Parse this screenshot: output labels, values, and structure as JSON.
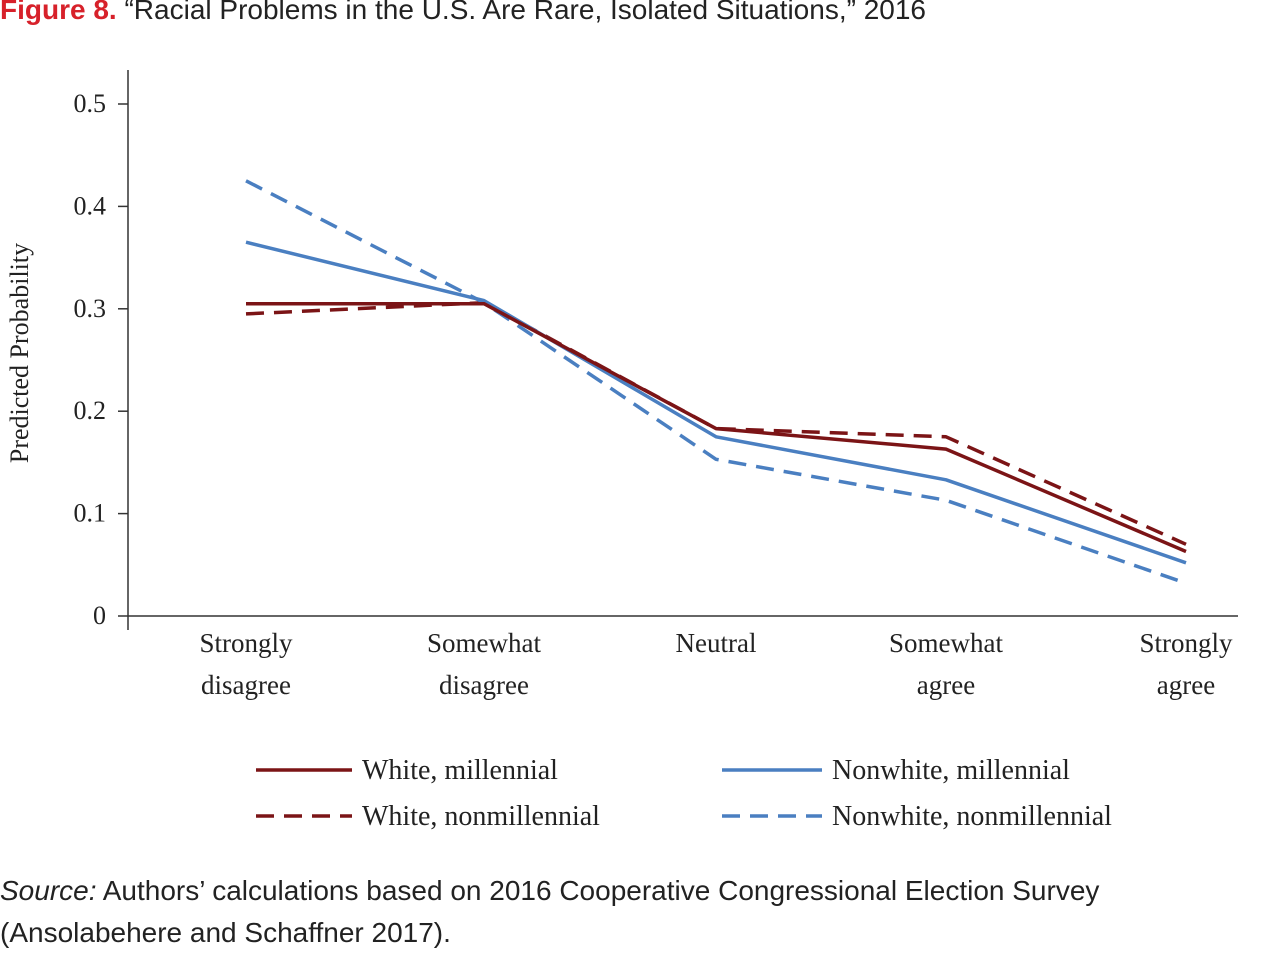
{
  "figure": {
    "label": "Figure 8.",
    "title": "“Racial Problems in the U.S. Are Rare, Isolated Situations,” 2016"
  },
  "source": {
    "label": "Source:",
    "line1": "Authors’ calculations based on 2016 Cooperative Congressional Election Survey",
    "line2": "(Ansolabehere and Schaffner 2017)."
  },
  "colors": {
    "white": "#7b1416",
    "nonwhite": "#4a7fc1",
    "accent": "#d7212a"
  },
  "chart_data": {
    "type": "line",
    "ylabel": "Predicted Probability",
    "xlabel": "",
    "ylim": [
      0,
      0.5
    ],
    "yticks": [
      0,
      0.1,
      0.2,
      0.3,
      0.4,
      0.5
    ],
    "ytick_labels": [
      "0",
      "0.1",
      "0.2",
      "0.3",
      "0.4",
      "0.5"
    ],
    "categories": [
      [
        "Strongly",
        "disagree"
      ],
      [
        "Somewhat",
        "disagree"
      ],
      [
        "Neutral"
      ],
      [
        "Somewhat",
        "agree"
      ],
      [
        "Strongly",
        "agree"
      ]
    ],
    "grid": false,
    "legend_position": "bottom",
    "series": [
      {
        "name": "White, millennial",
        "color": "#7b1416",
        "dash": "solid",
        "values": [
          0.305,
          0.305,
          0.183,
          0.163,
          0.063
        ]
      },
      {
        "name": "Nonwhite, millennial",
        "color": "#4a7fc1",
        "dash": "solid",
        "values": [
          0.365,
          0.308,
          0.175,
          0.133,
          0.052
        ]
      },
      {
        "name": "White, nonmillennial",
        "color": "#7b1416",
        "dash": "dashed",
        "values": [
          0.295,
          0.306,
          0.183,
          0.175,
          0.07
        ]
      },
      {
        "name": "Nonwhite, nonmillennial",
        "color": "#4a7fc1",
        "dash": "dashed",
        "values": [
          0.425,
          0.306,
          0.153,
          0.113,
          0.032
        ]
      }
    ]
  }
}
